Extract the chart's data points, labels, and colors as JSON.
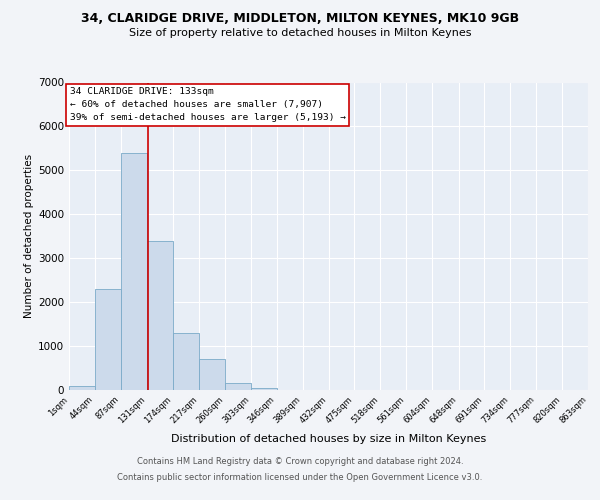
{
  "title1": "34, CLARIDGE DRIVE, MIDDLETON, MILTON KEYNES, MK10 9GB",
  "title2": "Size of property relative to detached houses in Milton Keynes",
  "xlabel": "Distribution of detached houses by size in Milton Keynes",
  "ylabel": "Number of detached properties",
  "bin_edges": [
    1,
    44,
    87,
    131,
    174,
    217,
    260,
    303,
    346,
    389,
    432,
    475,
    518,
    561,
    604,
    648,
    691,
    734,
    777,
    820,
    863
  ],
  "bar_heights": [
    100,
    2300,
    5400,
    3400,
    1300,
    700,
    150,
    50,
    10,
    5,
    2,
    1,
    0,
    0,
    0,
    0,
    0,
    0,
    0,
    0
  ],
  "bar_color": "#ccdaeb",
  "bar_edgecolor": "#7aaac8",
  "property_size": 133,
  "vline_color": "#cc0000",
  "annotation_text": "34 CLARIDGE DRIVE: 133sqm\n← 60% of detached houses are smaller (7,907)\n39% of semi-detached houses are larger (5,193) →",
  "annotation_box_color": "#cc0000",
  "ylim": [
    0,
    7000
  ],
  "yticks": [
    0,
    1000,
    2000,
    3000,
    4000,
    5000,
    6000,
    7000
  ],
  "footer1": "Contains HM Land Registry data © Crown copyright and database right 2024.",
  "footer2": "Contains public sector information licensed under the Open Government Licence v3.0.",
  "bg_color": "#f2f4f8",
  "plot_bg_color": "#e8eef6",
  "grid_color": "#ffffff",
  "title_fontsize": 9,
  "subtitle_fontsize": 8,
  "footer_fontsize": 6
}
